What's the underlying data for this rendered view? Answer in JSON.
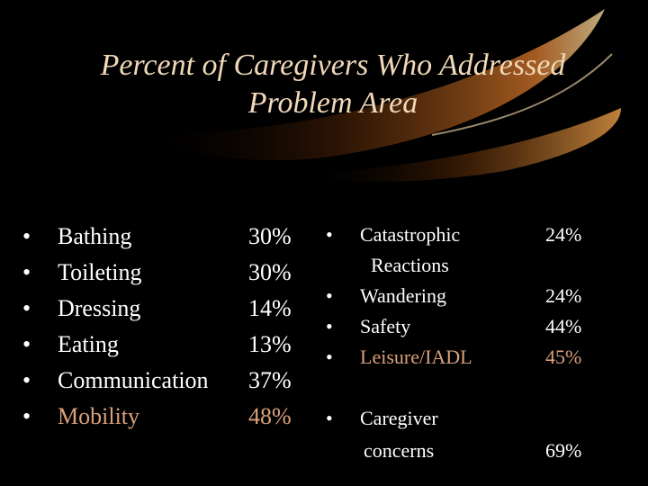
{
  "slide": {
    "title_line1": "Percent of Caregivers Who Addressed",
    "title_line2": "Problem Area",
    "bullet_char": "•",
    "highlight_color": "#d9a07a",
    "left_items": [
      {
        "label": "Bathing",
        "value": "30%"
      },
      {
        "label": "Toileting",
        "value": "30%"
      },
      {
        "label": "Dressing",
        "value": "14%"
      },
      {
        "label": "Eating",
        "value": "13%"
      },
      {
        "label": "Communication",
        "value": "37%"
      },
      {
        "label": "Mobility",
        "value": "48%"
      }
    ],
    "right_items": [
      {
        "label": "Catastrophic",
        "label2": "Reactions",
        "value": "24%"
      },
      {
        "label": "Wandering",
        "value": "24%"
      },
      {
        "label": "Safety",
        "value": "44%"
      },
      {
        "label": "Leisure/IADL",
        "value": "45%"
      },
      {
        "label": "Caregiver",
        "label2": "concerns",
        "value": "69%"
      }
    ]
  }
}
